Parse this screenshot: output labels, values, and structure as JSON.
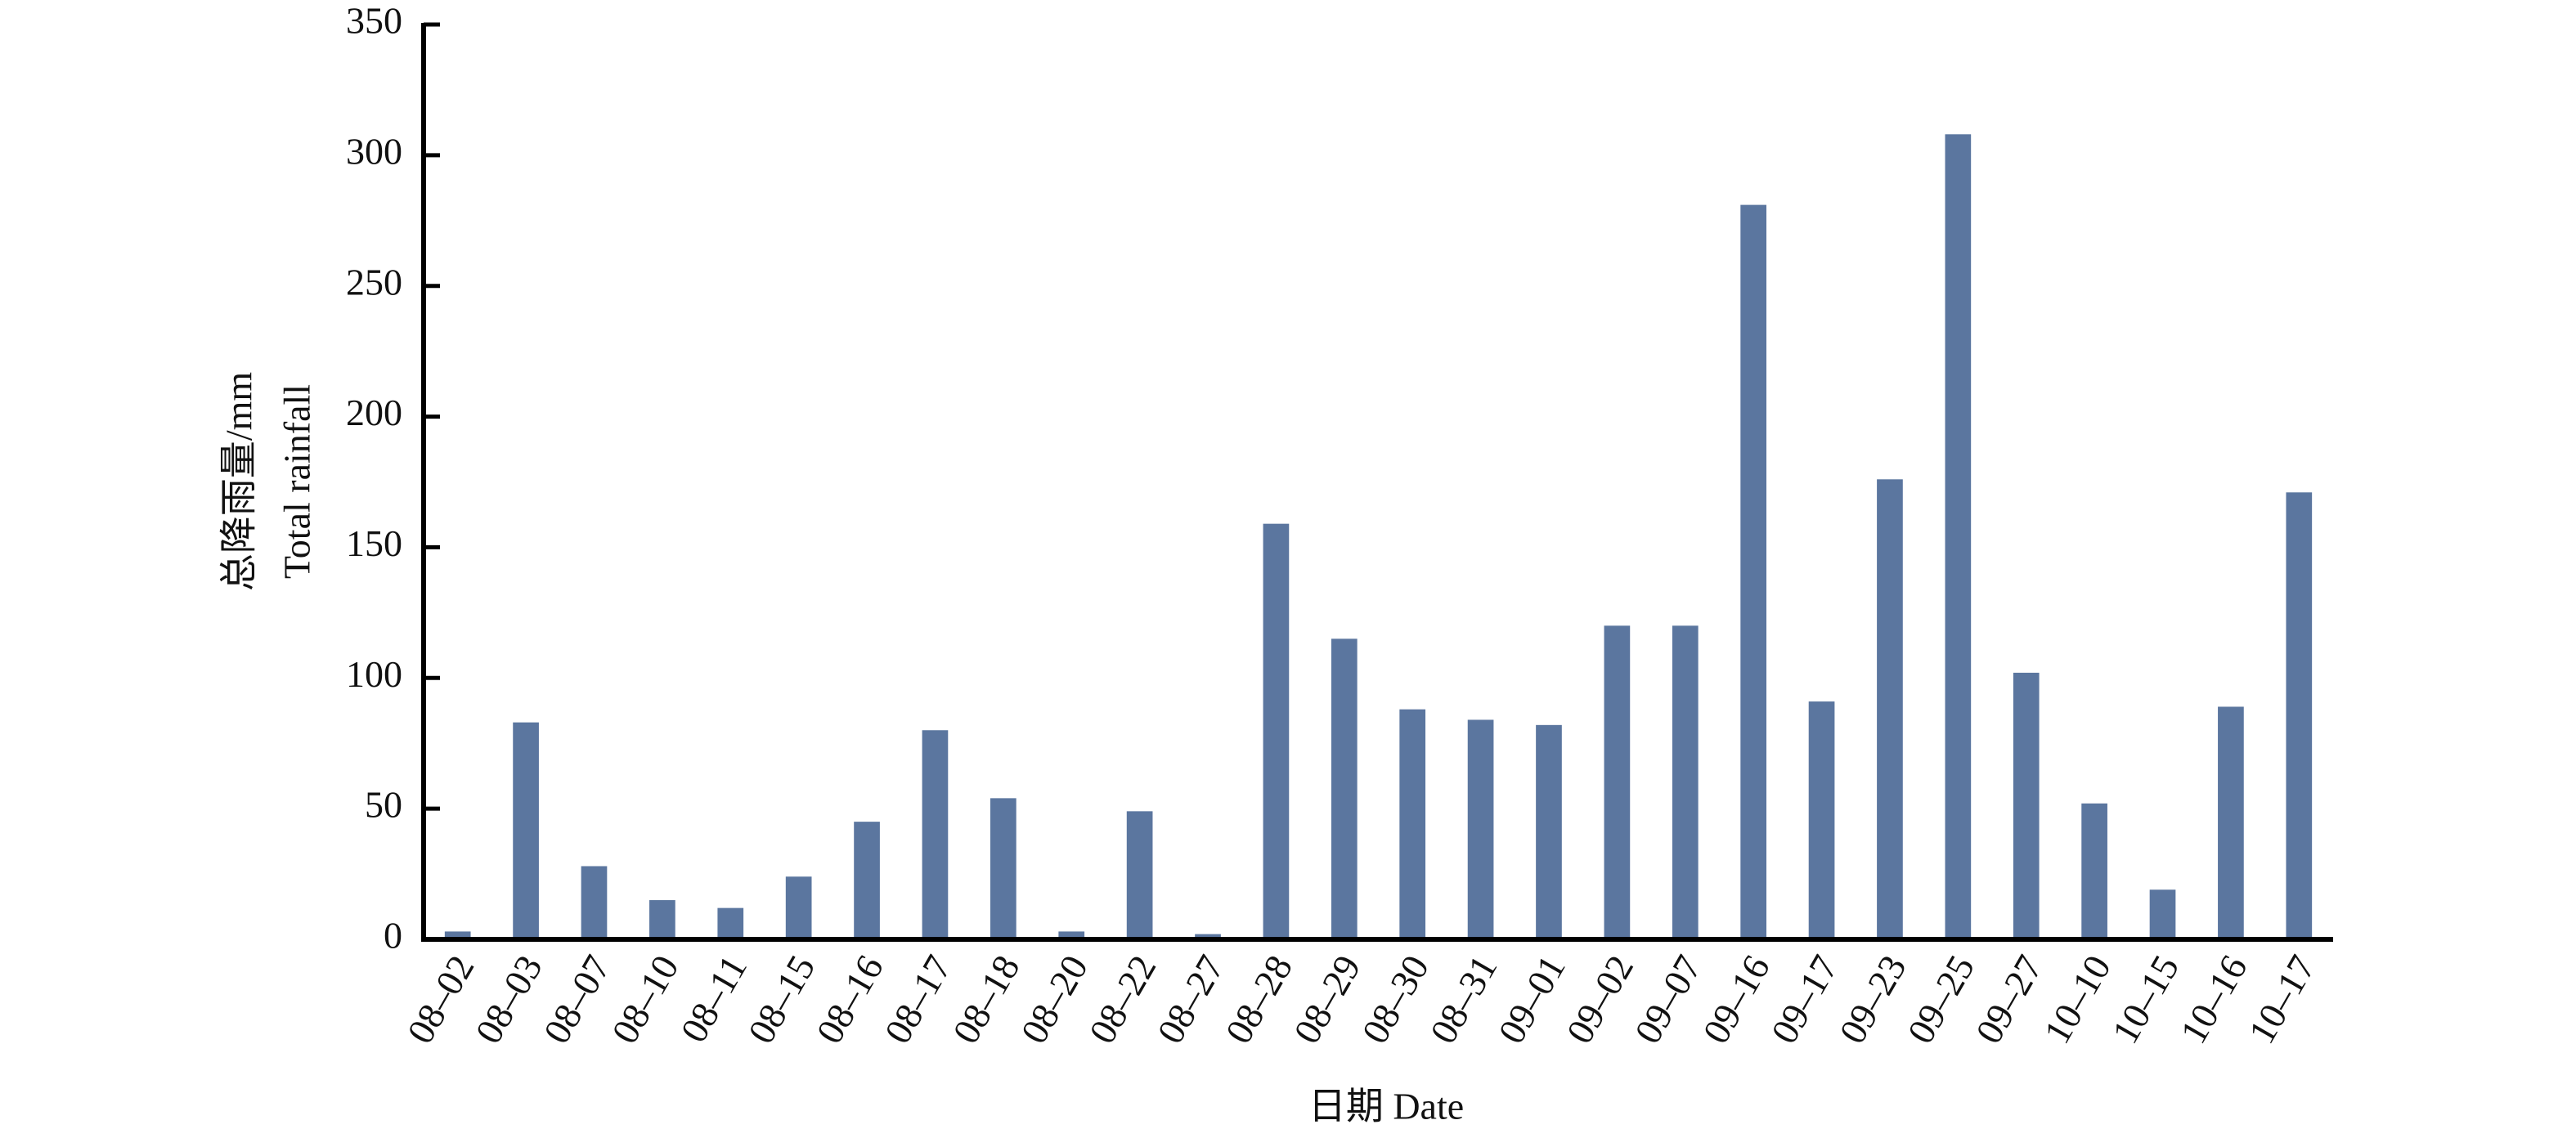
{
  "chart_data": {
    "type": "bar",
    "y_label": [
      "总降雨量/mm",
      "Total rainfall"
    ],
    "x_label": "日期 Date",
    "categories": [
      "08–02",
      "08–03",
      "08–07",
      "08–10",
      "08–11",
      "08–15",
      "08–16",
      "08–17",
      "08–18",
      "08–20",
      "08–22",
      "08–27",
      "08–28",
      "08–29",
      "08–30",
      "08–31",
      "09–01",
      "09–02",
      "09–07",
      "09–16",
      "09–17",
      "09–23",
      "09–25",
      "09–27",
      "10–10",
      "10–15",
      "10–16",
      "10–17"
    ],
    "values": [
      3,
      83,
      28,
      15,
      12,
      24,
      45,
      80,
      54,
      3,
      49,
      2,
      159,
      115,
      88,
      84,
      82,
      120,
      120,
      281,
      91,
      176,
      308,
      102,
      52,
      19,
      89,
      171
    ],
    "color": "#5b769f",
    "ylim": [
      0,
      350
    ],
    "yticks": [
      0,
      50,
      100,
      150,
      200,
      250,
      300,
      350
    ],
    "grid": false
  }
}
